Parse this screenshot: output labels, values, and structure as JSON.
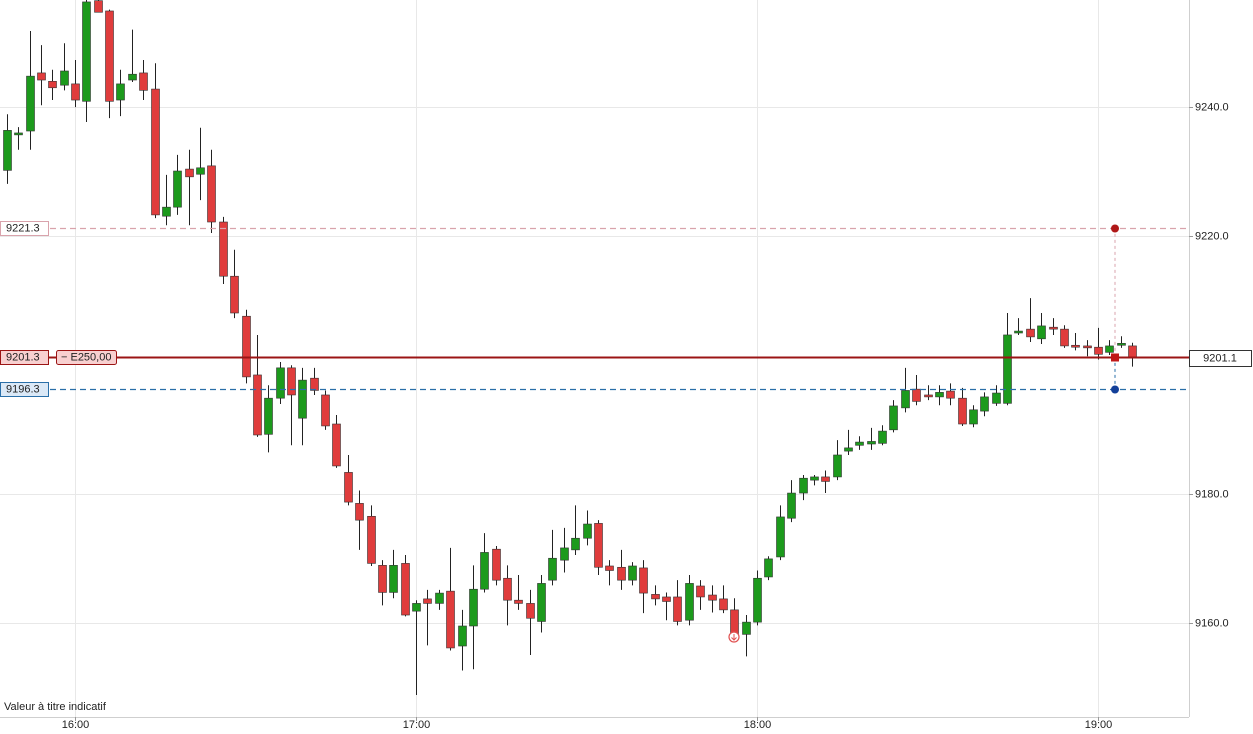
{
  "chart_data": {
    "type": "candlestick",
    "up_color": "#1c9a1c",
    "down_color": "#e03c3c",
    "grid": true,
    "xlim": [
      946.8,
      1156.0
    ],
    "ylim": [
      9145.5,
      9256.6
    ],
    "xticks": [
      {
        "value": 960,
        "label": "16:00"
      },
      {
        "value": 1020,
        "label": "17:00"
      },
      {
        "value": 1080,
        "label": "18:00"
      },
      {
        "value": 1140,
        "label": "19:00"
      }
    ],
    "yticks": [
      {
        "value": 9160,
        "label": "9160.0"
      },
      {
        "value": 9180,
        "label": "9180.0"
      },
      {
        "value": 9220,
        "label": "9220.0"
      },
      {
        "value": 9240,
        "label": "9240.0"
      }
    ],
    "x": [
      948,
      950,
      952,
      954,
      956,
      958,
      960,
      962,
      964,
      966,
      968,
      970,
      972,
      974,
      976,
      978,
      980,
      982,
      984,
      986,
      988,
      990,
      992,
      994,
      996,
      998,
      1000,
      1002,
      1004,
      1006,
      1008,
      1010,
      1012,
      1014,
      1016,
      1018,
      1020,
      1022,
      1024,
      1026,
      1028,
      1030,
      1032,
      1034,
      1036,
      1038,
      1040,
      1042,
      1044,
      1046,
      1048,
      1050,
      1052,
      1054,
      1056,
      1058,
      1060,
      1062,
      1064,
      1066,
      1068,
      1070,
      1072,
      1074,
      1076,
      1078,
      1080,
      1082,
      1084,
      1086,
      1088,
      1090,
      1092,
      1094,
      1096,
      1098,
      1100,
      1102,
      1104,
      1106,
      1108,
      1110,
      1112,
      1114,
      1116,
      1118,
      1120,
      1122,
      1124,
      1126,
      1128,
      1130,
      1132,
      1134,
      1136,
      1138,
      1140,
      1142,
      1144,
      1146
    ],
    "open": [
      9230.2,
      9235.7,
      9236.3,
      9245.3,
      9244.0,
      9243.4,
      9243.6,
      9240.9,
      9256.5,
      9254.9,
      9241.1,
      9244.2,
      9245.3,
      9242.8,
      9223.1,
      9224.5,
      9230.4,
      9229.6,
      9230.9,
      9222.2,
      9213.8,
      9207.6,
      9198.5,
      9189.3,
      9194.9,
      9199.6,
      9191.8,
      9198.0,
      9195.4,
      9190.9,
      9183.4,
      9178.6,
      9176.6,
      9169.0,
      9164.8,
      9169.3,
      9161.9,
      9163.8,
      9163.1,
      9165.0,
      9156.5,
      9159.6,
      9165.3,
      9171.5,
      9167.0,
      9163.6,
      9163.1,
      9160.3,
      9166.7,
      9169.8,
      9171.4,
      9173.2,
      9175.5,
      9168.9,
      9168.7,
      9166.7,
      9168.6,
      9164.5,
      9164.1,
      9164.1,
      9160.5,
      9165.8,
      9164.4,
      9163.8,
      9162.1,
      9158.3,
      9160.2,
      9167.2,
      9170.3,
      9176.3,
      9180.2,
      9182.2,
      9182.7,
      9182.7,
      9186.7,
      9187.6,
      9187.8,
      9187.9,
      9190.0,
      9193.4,
      9196.3,
      9195.4,
      9195.1,
      9196.0,
      9194.9,
      9190.9,
      9192.9,
      9194.1,
      9194.1,
      9205.0,
      9205.6,
      9204.1,
      9205.9,
      9205.6,
      9203.1,
      9203.0,
      9202.8,
      9202.0,
      9203.1,
      9203.0
    ],
    "high": [
      9238.9,
      9236.9,
      9251.8,
      9249.6,
      9245.8,
      9249.9,
      9247.3,
      9256.6,
      9256.6,
      9255.1,
      9245.8,
      9252.0,
      9247.3,
      9246.8,
      9229.5,
      9232.6,
      9233.4,
      9236.8,
      9233.4,
      9223.0,
      9217.9,
      9208.6,
      9204.7,
      9196.9,
      9200.5,
      9200.0,
      9199.6,
      9199.6,
      9196.1,
      9192.3,
      9186.1,
      9180.6,
      9178.3,
      9169.8,
      9171.4,
      9170.6,
      9163.6,
      9165.2,
      9165.2,
      9171.7,
      9162.1,
      9169.0,
      9174.0,
      9172.0,
      9169.0,
      9167.5,
      9165.2,
      9167.5,
      9174.5,
      9174.8,
      9178.3,
      9177.5,
      9176.0,
      9169.8,
      9171.4,
      9169.5,
      9169.8,
      9165.9,
      9164.8,
      9166.7,
      9167.5,
      9166.7,
      9165.9,
      9165.9,
      9163.9,
      9161.3,
      9168.2,
      9170.4,
      9178.3,
      9182.2,
      9183.0,
      9183.0,
      9183.7,
      9188.4,
      9190.0,
      9189.0,
      9190.3,
      9190.7,
      9194.6,
      9199.6,
      9198.5,
      9196.9,
      9196.9,
      9197.2,
      9196.5,
      9193.8,
      9195.8,
      9196.9,
      9208.1,
      9207.3,
      9210.4,
      9208.1,
      9207.3,
      9206.2,
      9205.0,
      9203.9,
      9205.8,
      9203.9,
      9204.5,
      9203.5
    ],
    "low": [
      9228.1,
      9233.4,
      9233.4,
      9240.3,
      9241.1,
      9242.6,
      9240.0,
      9237.7,
      9254.7,
      9238.3,
      9238.6,
      9243.9,
      9241.1,
      9222.8,
      9221.7,
      9223.3,
      9221.7,
      9225.6,
      9220.5,
      9212.6,
      9207.3,
      9197.2,
      9188.9,
      9186.5,
      9194.0,
      9187.6,
      9187.6,
      9195.4,
      9190.0,
      9184.1,
      9178.3,
      9171.4,
      9168.9,
      9162.8,
      9163.9,
      9161.1,
      9148.9,
      9156.6,
      9162.1,
      9155.8,
      9152.7,
      9152.9,
      9164.8,
      9165.9,
      9159.7,
      9162.1,
      9155.1,
      9158.6,
      9165.9,
      9167.9,
      9170.6,
      9172.1,
      9167.5,
      9165.9,
      9165.2,
      9165.9,
      9161.6,
      9162.8,
      9160.5,
      9159.7,
      9159.7,
      9162.1,
      9161.7,
      9161.6,
      9157.4,
      9154.9,
      9159.7,
      9166.7,
      9169.8,
      9175.7,
      9179.1,
      9181.4,
      9180.2,
      9182.2,
      9186.1,
      9186.9,
      9186.9,
      9187.6,
      9189.6,
      9192.7,
      9193.8,
      9194.6,
      9193.8,
      9193.8,
      9190.6,
      9190.4,
      9192.1,
      9193.7,
      9193.8,
      9204.7,
      9203.6,
      9203.3,
      9204.7,
      9202.7,
      9202.3,
      9201.4,
      9200.9,
      9201.6,
      9202.7,
      9199.8
    ],
    "close": [
      9236.4,
      9236.0,
      9244.8,
      9244.2,
      9243.0,
      9245.6,
      9241.1,
      9256.3,
      9254.7,
      9240.9,
      9243.6,
      9245.1,
      9242.6,
      9223.3,
      9224.5,
      9230.1,
      9229.2,
      9230.6,
      9222.2,
      9213.8,
      9208.1,
      9198.2,
      9189.2,
      9194.9,
      9199.6,
      9195.4,
      9197.7,
      9196.1,
      9190.6,
      9184.4,
      9178.8,
      9176.0,
      9169.3,
      9164.8,
      9169.0,
      9161.3,
      9163.1,
      9163.1,
      9164.7,
      9156.2,
      9159.6,
      9165.3,
      9171.0,
      9166.7,
      9163.6,
      9163.1,
      9160.8,
      9166.2,
      9170.1,
      9171.7,
      9173.2,
      9175.4,
      9168.7,
      9168.2,
      9166.7,
      9168.9,
      9164.7,
      9163.8,
      9163.4,
      9160.3,
      9166.2,
      9164.1,
      9163.6,
      9162.1,
      9158.0,
      9160.2,
      9167.0,
      9170.0,
      9176.5,
      9180.2,
      9182.5,
      9182.7,
      9182.0,
      9186.1,
      9187.2,
      9188.1,
      9188.2,
      9189.8,
      9193.7,
      9196.1,
      9194.4,
      9195.1,
      9195.8,
      9194.9,
      9190.9,
      9193.1,
      9195.1,
      9195.7,
      9204.7,
      9205.3,
      9204.4,
      9206.1,
      9205.6,
      9203.0,
      9202.8,
      9202.7,
      9201.7,
      9203.0,
      9203.4,
      9201.1
    ],
    "orders": [
      {
        "price": 9221.3,
        "color": "#d9a3ac",
        "style": "dashed",
        "marker": "#b01818"
      },
      {
        "price": 9201.3,
        "color": "#9b1414",
        "style": "solid",
        "marker": "#c01818",
        "pnl": "− E250,00"
      },
      {
        "price": 9196.3,
        "color": "#2a6fa8",
        "style": "dashed",
        "marker": "#123f99"
      }
    ],
    "last_price": 9201.1,
    "footnote": "Valeur à titre indicatif"
  }
}
